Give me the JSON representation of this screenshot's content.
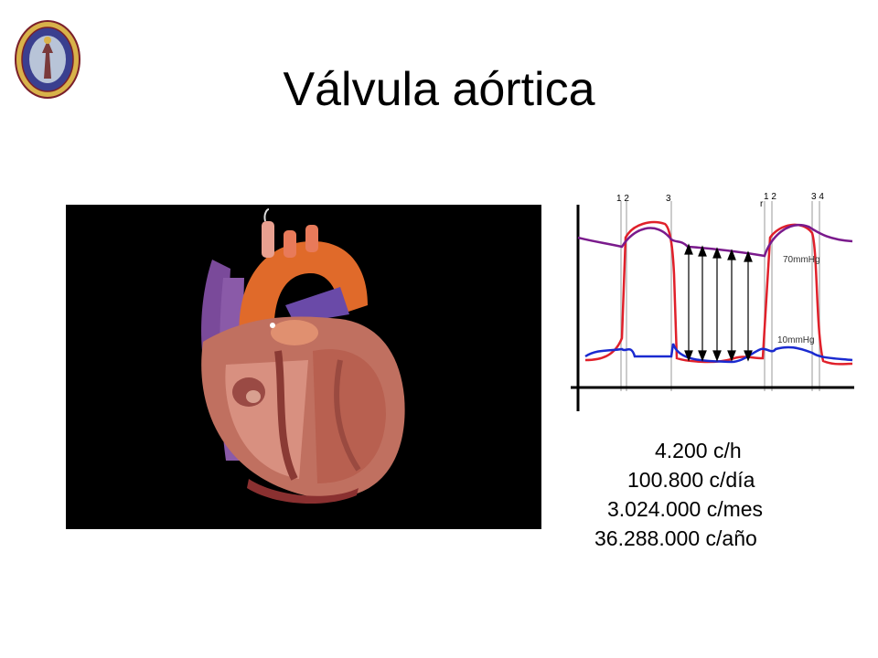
{
  "slide": {
    "title": "Válvula aórtica"
  },
  "logo": {
    "name": "university-seal",
    "colors": [
      "#3a3f8f",
      "#d8b24a",
      "#7a1f2a"
    ]
  },
  "pressure_graph": {
    "phase_marks": [
      "1 2",
      "3",
      "r",
      "1 2",
      "3 4"
    ],
    "labels": {
      "aortic": "70mmHg",
      "atrial": "10mmHg"
    },
    "line_colors": {
      "aorta": "#7a1a8c",
      "ventricle": "#e0202a",
      "atrium": "#1a2ad0"
    }
  },
  "stats": [
    {
      "value": "4.200",
      "unit": "c/h"
    },
    {
      "value": "100.800",
      "unit": "c/día"
    },
    {
      "value": "3.024.000",
      "unit": "c/mes"
    },
    {
      "value": "36.288.000",
      "unit": "c/año"
    }
  ]
}
